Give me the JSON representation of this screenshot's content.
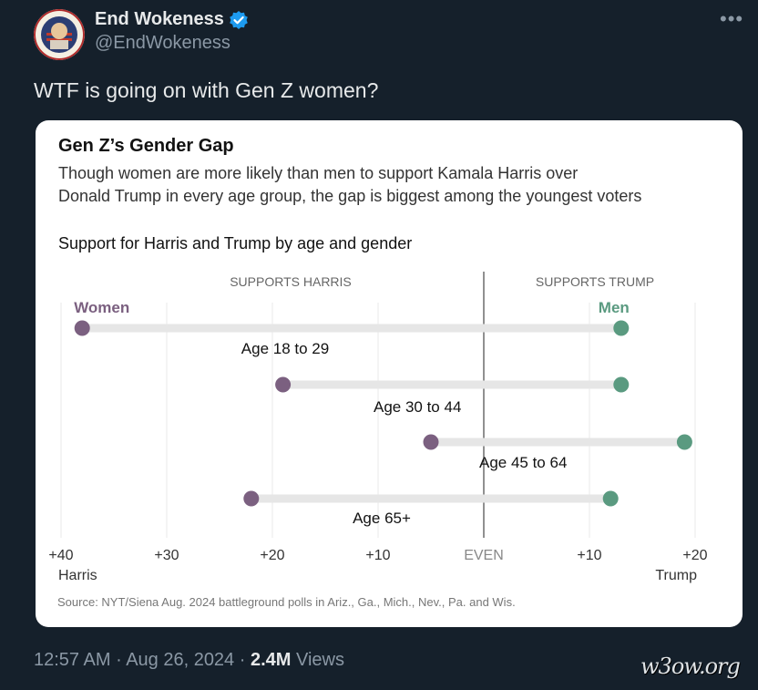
{
  "author": {
    "display_name": "End Wokeness",
    "handle": "@EndWokeness",
    "avatar_text_top": "I SUPPORT THE",
    "avatar_text_bottom": "DONALD TRUMP"
  },
  "tweet": {
    "text": "WTF is going on with Gen Z women?",
    "time": "12:57 AM",
    "date": "Aug 26, 2024",
    "views_count": "2.4M",
    "views_label": "Views"
  },
  "watermark": "w3ow.org",
  "chart_data": {
    "type": "dot_range",
    "title": "Gen Z’s Gender Gap",
    "subtitle_line1": "Though women are more likely than men to support Kamala Harris over",
    "subtitle_line2": "Donald Trump in every age group, the gap is biggest among the youngest voters",
    "chart_title": "Support for Harris and Trump by age and gender",
    "left_header": "SUPPORTS HARRIS",
    "right_header": "SUPPORTS TRUMP",
    "series": [
      {
        "name": "Women",
        "color": "#7b6080"
      },
      {
        "name": "Men",
        "color": "#5a9a80"
      }
    ],
    "rows": [
      {
        "label": "Age 18 to 29",
        "women": -38,
        "men": 13
      },
      {
        "label": "Age 30 to 44",
        "women": -19,
        "men": 13
      },
      {
        "label": "Age 45 to 64",
        "women": -5,
        "men": 19
      },
      {
        "label": "Age 65+",
        "women": -22,
        "men": 12
      }
    ],
    "x_ticks": [
      {
        "value": -40,
        "label": "+40"
      },
      {
        "value": -30,
        "label": "+30"
      },
      {
        "value": -20,
        "label": "+20"
      },
      {
        "value": -10,
        "label": "+10"
      },
      {
        "value": 0,
        "label": "EVEN"
      },
      {
        "value": 10,
        "label": "+10"
      },
      {
        "value": 20,
        "label": "+20"
      }
    ],
    "x_left_caption": "Harris",
    "x_right_caption": "Trump",
    "xlim": [
      -40,
      20
    ],
    "source": "Source: NYT/Siena Aug. 2024 battleground polls in Ariz., Ga., Mich., Nev., Pa. and Wis.",
    "colors": {
      "women": "#7b6080",
      "men": "#5a9a80",
      "bar": "#e6e6e6",
      "grid": "#e8e8e8"
    }
  }
}
